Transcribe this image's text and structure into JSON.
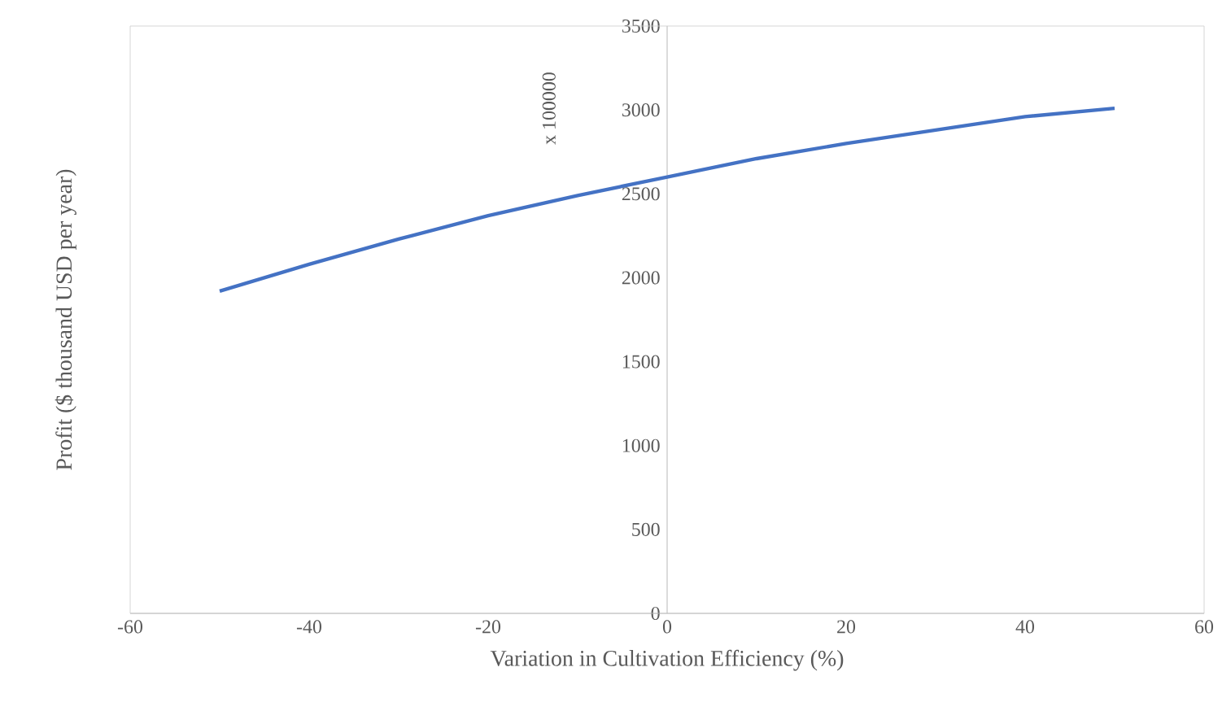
{
  "chart_data": {
    "type": "line",
    "xlabel": "Variation in Cultivation Efficiency (%)",
    "ylabel": "Profit ($ thousand USD per year)",
    "annotations": [
      "x 100000"
    ],
    "x": [
      -50,
      -40,
      -30,
      -20,
      -10,
      0,
      10,
      20,
      30,
      40,
      50
    ],
    "series": [
      {
        "color": "#4472c4",
        "values": [
          1920,
          2080,
          2230,
          2370,
          2490,
          2600,
          2710,
          2800,
          2880,
          2960,
          3010
        ]
      }
    ],
    "xlim": [
      -60,
      60
    ],
    "xticks": [
      -60,
      -40,
      -20,
      0,
      20,
      40,
      60
    ],
    "ylim": [
      0,
      3500
    ],
    "yticks": [
      0,
      500,
      1000,
      1500,
      2000,
      2500,
      3000,
      3500
    ]
  }
}
